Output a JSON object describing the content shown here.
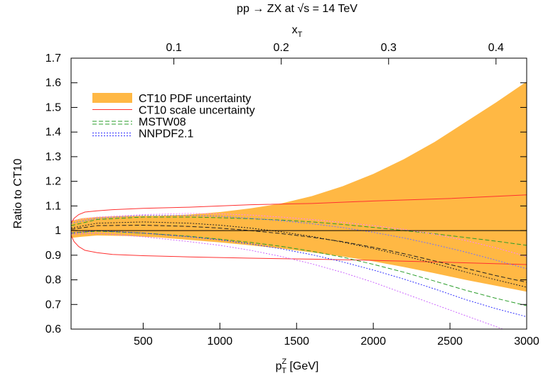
{
  "chart_data": {
    "type": "line",
    "title": "pp → ZX at √s = 14 TeV",
    "xlabel": "p",
    "xlabel_sub": "T",
    "xlabel_sup": "Z",
    "xlabel_unit": " [GeV]",
    "ylabel": "Ratio to CT10",
    "top_axis_label": "x",
    "top_axis_label_sub": "T",
    "xlim": [
      30,
      3000
    ],
    "ylim": [
      0.6,
      1.7
    ],
    "x_ticks": [
      500,
      1000,
      1500,
      2000,
      2500,
      3000
    ],
    "x_tick_labels": [
      "500",
      "1000",
      "1500",
      "2000",
      "2500",
      "3000"
    ],
    "y_ticks": [
      0.6,
      0.7,
      0.8,
      0.9,
      1.0,
      1.1,
      1.2,
      1.3,
      1.4,
      1.5,
      1.6,
      1.7
    ],
    "y_tick_labels": [
      "0.6",
      "0.7",
      "0.8",
      "0.9",
      "1",
      "1.1",
      "1.2",
      "1.3",
      "1.4",
      "1.5",
      "1.6",
      "1.7"
    ],
    "top_ticks": [
      0.1,
      0.2,
      0.3,
      0.4
    ],
    "top_tick_labels": [
      "0.1",
      "0.2",
      "0.3",
      "0.4"
    ],
    "sqrt_s_gev": 14000,
    "legend_placement": "top-left",
    "legend": [
      {
        "label": "CT10 PDF uncertainty",
        "style": "band",
        "color": "#ffb844"
      },
      {
        "label": "CT10 scale uncertainty",
        "style": "solid",
        "color": "#ff3030"
      },
      {
        "label": "MSTW08",
        "style": "dashed",
        "color": "#2a9d2a"
      },
      {
        "label": "NNPDF2.1",
        "style": "dotted",
        "color": "#3030ff"
      }
    ],
    "band": {
      "name": "CT10 PDF uncertainty",
      "color": "#ffb844",
      "x": [
        30,
        100,
        200,
        400,
        600,
        800,
        1000,
        1200,
        1400,
        1600,
        1800,
        2000,
        2200,
        2400,
        2600,
        2800,
        3000
      ],
      "upper": [
        1.04,
        1.05,
        1.055,
        1.06,
        1.06,
        1.065,
        1.075,
        1.09,
        1.11,
        1.14,
        1.18,
        1.23,
        1.29,
        1.36,
        1.44,
        1.52,
        1.605
      ],
      "lower": [
        0.97,
        0.975,
        0.98,
        0.978,
        0.972,
        0.962,
        0.952,
        0.94,
        0.927,
        0.912,
        0.895,
        0.875,
        0.852,
        0.827,
        0.8,
        0.776,
        0.752
      ]
    },
    "series": [
      {
        "name": "CT10 scale uncertainty",
        "color": "#ff3030",
        "dash": "none",
        "x": [
          30,
          50,
          80,
          120,
          200,
          300,
          500,
          800,
          1200,
          1600,
          2000,
          2500,
          3000
        ],
        "y": [
          1.03,
          1.05,
          1.065,
          1.075,
          1.08,
          1.085,
          1.09,
          1.095,
          1.105,
          1.11,
          1.12,
          1.13,
          1.145
        ]
      },
      {
        "name": "CT10 scale uncertainty",
        "color": "#ff3030",
        "dash": "none",
        "x": [
          30,
          50,
          80,
          120,
          200,
          300,
          500,
          800,
          1200,
          1600,
          2000,
          2500,
          3000
        ],
        "y": [
          0.98,
          0.955,
          0.935,
          0.92,
          0.91,
          0.903,
          0.898,
          0.893,
          0.888,
          0.884,
          0.879,
          0.871,
          0.862
        ]
      },
      {
        "name": "MSTW08",
        "color": "#2a9d2a",
        "dash": "6,3",
        "x": [
          30,
          200,
          500,
          800,
          1000,
          1200,
          1400,
          1600,
          1800,
          2000,
          2200,
          2400,
          2600,
          2800,
          3000
        ],
        "y": [
          1.02,
          1.045,
          1.055,
          1.055,
          1.052,
          1.048,
          1.043,
          1.035,
          1.025,
          1.013,
          1.0,
          0.987,
          0.972,
          0.957,
          0.94
        ]
      },
      {
        "name": "MSTW08",
        "color": "#2a9d2a",
        "dash": "6,3",
        "x": [
          30,
          200,
          500,
          800,
          1000,
          1200,
          1400,
          1600,
          1800,
          2000,
          2200,
          2400,
          2600,
          2800,
          3000
        ],
        "y": [
          0.99,
          0.998,
          0.99,
          0.977,
          0.965,
          0.952,
          0.936,
          0.916,
          0.892,
          0.863,
          0.831,
          0.795,
          0.758,
          0.725,
          0.695
        ]
      },
      {
        "name": "MSTW08 central",
        "color": "#222222",
        "dash": "6,3",
        "x": [
          30,
          200,
          500,
          800,
          1000,
          1200,
          1400,
          1600,
          1800,
          2000,
          2200,
          2400,
          2600,
          2800,
          3000
        ],
        "y": [
          1.005,
          1.02,
          1.022,
          1.017,
          1.01,
          1.0,
          0.988,
          0.973,
          0.955,
          0.932,
          0.906,
          0.877,
          0.847,
          0.817,
          0.79
        ]
      },
      {
        "name": "NNPDF2.1",
        "color": "#7070ff",
        "dash": "2,2",
        "x": [
          30,
          200,
          500,
          800,
          1000,
          1200,
          1400,
          1600,
          1800,
          2000,
          2200,
          2400,
          2600,
          2800,
          3000
        ],
        "y": [
          1.03,
          1.05,
          1.062,
          1.062,
          1.058,
          1.05,
          1.04,
          1.028,
          1.012,
          0.993,
          0.97,
          0.943,
          0.913,
          0.88,
          0.845
        ]
      },
      {
        "name": "NNPDF2.1",
        "color": "#3030ff",
        "dash": "2,2",
        "x": [
          30,
          200,
          500,
          800,
          1000,
          1200,
          1400,
          1600,
          1800,
          2000,
          2200,
          2400,
          2600,
          2800,
          3000
        ],
        "y": [
          0.99,
          1.0,
          0.99,
          0.975,
          0.962,
          0.946,
          0.926,
          0.902,
          0.873,
          0.84,
          0.803,
          0.763,
          0.72,
          0.683,
          0.65
        ]
      },
      {
        "name": "NNPDF2.1 central",
        "color": "#222222",
        "dash": "2,2",
        "x": [
          30,
          200,
          500,
          800,
          1000,
          1200,
          1400,
          1600,
          1800,
          2000,
          2200,
          2400,
          2600,
          2800,
          3000
        ],
        "y": [
          1.01,
          1.03,
          1.035,
          1.03,
          1.022,
          1.01,
          0.995,
          0.976,
          0.953,
          0.927,
          0.898,
          0.866,
          0.832,
          0.8,
          0.77
        ]
      },
      {
        "name": "NNPDF2.1 pink",
        "color": "#ff80ff",
        "dash": "2,2",
        "x": [
          30,
          200,
          500,
          800,
          1000,
          1200,
          1400,
          1600,
          1800,
          2000,
          2200,
          2400,
          2600,
          2800,
          3000
        ],
        "y": [
          1.04,
          1.055,
          1.065,
          1.07,
          1.068,
          1.063,
          1.055,
          1.045,
          1.033,
          1.02,
          1.005,
          0.985,
          0.96,
          0.93,
          0.895
        ]
      },
      {
        "name": "NNPDF2.1 pink",
        "color": "#cc66ff",
        "dash": "2,2",
        "x": [
          30,
          200,
          500,
          800,
          1000,
          1200,
          1400,
          1600,
          1800,
          2000,
          2200,
          2400,
          2600,
          2800,
          2950
        ],
        "y": [
          0.985,
          0.99,
          0.975,
          0.955,
          0.94,
          0.92,
          0.895,
          0.865,
          0.83,
          0.79,
          0.745,
          0.7,
          0.655,
          0.61,
          0.575
        ]
      },
      {
        "name": "Ratio = 1",
        "color": "#000000",
        "dash": "none",
        "x": [
          30,
          3000
        ],
        "y": [
          1.0,
          1.0
        ]
      }
    ]
  }
}
